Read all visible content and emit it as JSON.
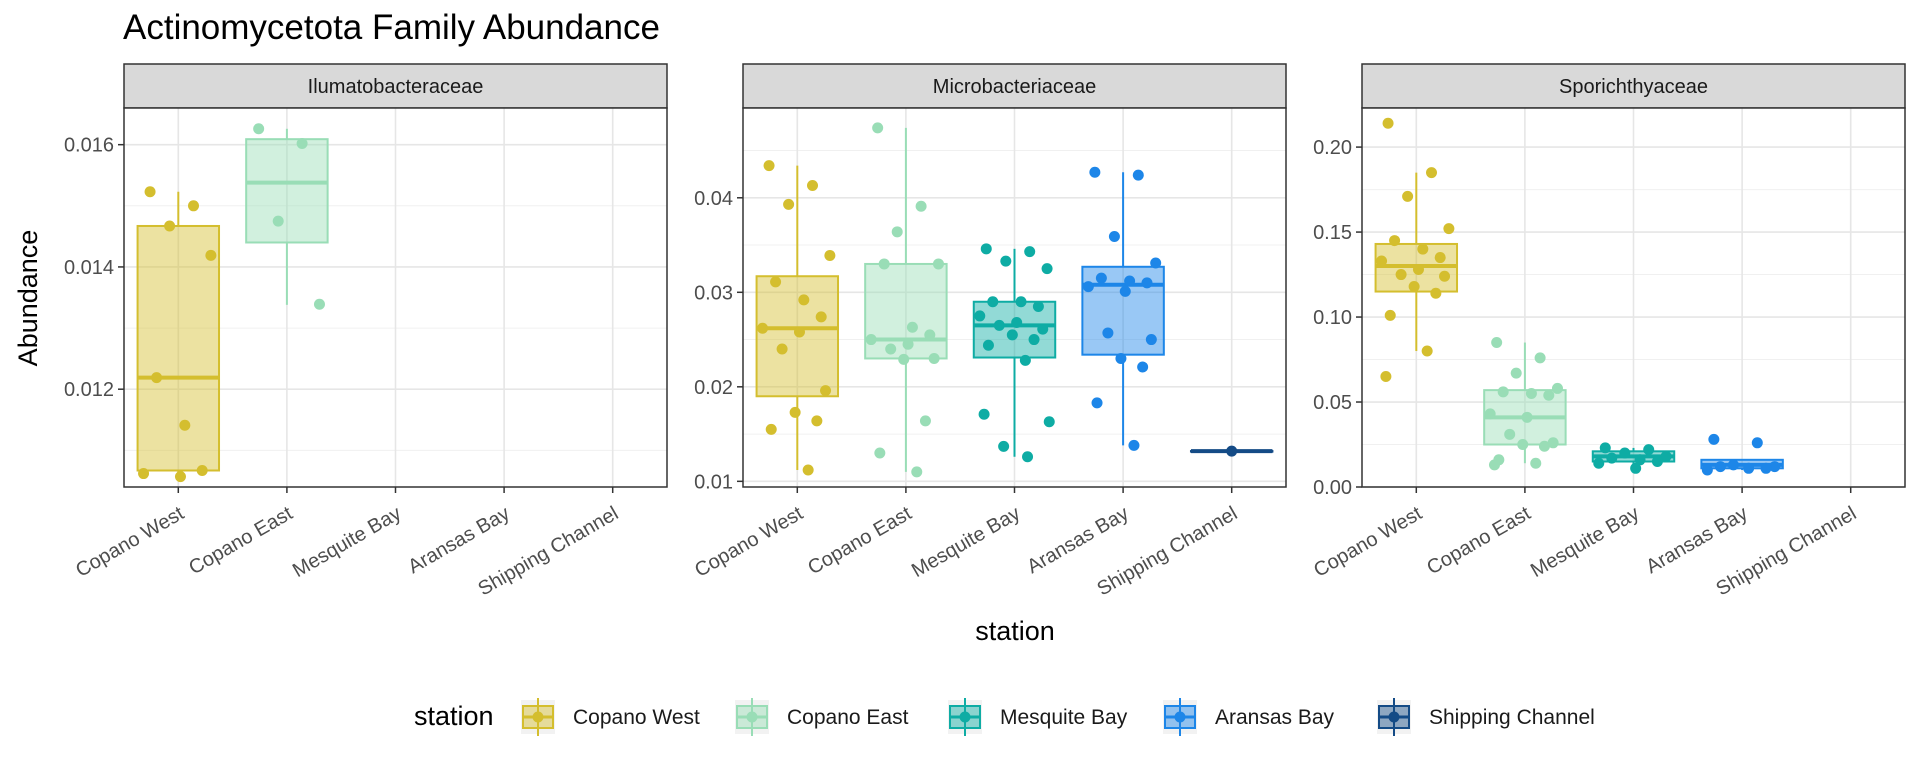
{
  "chart_title": "Actinomycetota Family Abundance",
  "x_label": "station",
  "y_label": "Abundance",
  "legend_title": "station",
  "stations": [
    "Copano West",
    "Copano East",
    "Mesquite Bay",
    "Aransas Bay",
    "Shipping Channel"
  ],
  "colors": {
    "Copano West": "#D4BE2E",
    "Copano East": "#99DDB6",
    "Mesquite Bay": "#0EACA4",
    "Aransas Bay": "#1D86E8",
    "Shipping Channel": "#144B86"
  },
  "chart_data": [
    {
      "type": "box",
      "facet": "Ilumatobacteraceae",
      "ylim": [
        0.0104,
        0.0166
      ],
      "yticks": [
        0.012,
        0.014,
        0.016
      ],
      "ytick_labels": [
        "0.012",
        "0.014",
        "0.016"
      ],
      "boxes": [
        {
          "station": "Copano West",
          "lower": 0.01062,
          "q1": 0.01067,
          "median": 0.01219,
          "q3": 0.01467,
          "upper": 0.01523
        },
        {
          "station": "Copano East",
          "lower": 0.01338,
          "q1": 0.0144,
          "median": 0.01538,
          "q3": 0.01609,
          "upper": 0.01626
        }
      ],
      "points": [
        {
          "station": "Copano West",
          "y": [
            0.01523,
            0.015,
            0.01467,
            0.01419,
            0.01219,
            0.01141,
            0.01067,
            0.01062,
            0.01057
          ]
        },
        {
          "station": "Copano East",
          "y": [
            0.01626,
            0.01602,
            0.01475,
            0.01339
          ]
        }
      ]
    },
    {
      "type": "box",
      "facet": "Microbacteriaceae",
      "ylim": [
        0.0094,
        0.0495
      ],
      "yticks": [
        0.01,
        0.02,
        0.03,
        0.04
      ],
      "ytick_labels": [
        "0.01",
        "0.02",
        "0.03",
        "0.04"
      ],
      "boxes": [
        {
          "station": "Copano West",
          "lower": 0.0112,
          "q1": 0.019,
          "median": 0.0262,
          "q3": 0.0317,
          "upper": 0.0434
        },
        {
          "station": "Copano East",
          "lower": 0.011,
          "q1": 0.023,
          "median": 0.025,
          "q3": 0.033,
          "upper": 0.0474
        },
        {
          "station": "Mesquite Bay",
          "lower": 0.0126,
          "q1": 0.0231,
          "median": 0.0265,
          "q3": 0.029,
          "upper": 0.0346
        },
        {
          "station": "Aransas Bay",
          "lower": 0.0138,
          "q1": 0.0234,
          "median": 0.0308,
          "q3": 0.0327,
          "upper": 0.0427
        },
        {
          "station": "Shipping Channel",
          "lower": 0.0132,
          "q1": 0.0132,
          "median": 0.0132,
          "q3": 0.0132,
          "upper": 0.0132
        }
      ],
      "points": [
        {
          "station": "Copano West",
          "y": [
            0.0434,
            0.0413,
            0.0393,
            0.0339,
            0.0311,
            0.0292,
            0.0274,
            0.0262,
            0.0258,
            0.024,
            0.0196,
            0.0173,
            0.0164,
            0.0155,
            0.0112
          ]
        },
        {
          "station": "Copano East",
          "y": [
            0.0474,
            0.0391,
            0.0364,
            0.033,
            0.033,
            0.0263,
            0.0255,
            0.025,
            0.0245,
            0.024,
            0.023,
            0.0229,
            0.0164,
            0.013,
            0.011
          ]
        },
        {
          "station": "Mesquite Bay",
          "y": [
            0.0346,
            0.0343,
            0.0333,
            0.0325,
            0.029,
            0.029,
            0.0285,
            0.0275,
            0.0268,
            0.0265,
            0.0261,
            0.0255,
            0.025,
            0.0244,
            0.0228,
            0.0171,
            0.0163,
            0.0137,
            0.0126
          ]
        },
        {
          "station": "Aransas Bay",
          "y": [
            0.0427,
            0.0424,
            0.0359,
            0.0331,
            0.0315,
            0.0312,
            0.031,
            0.0306,
            0.0301,
            0.0257,
            0.025,
            0.023,
            0.0221,
            0.0183,
            0.0138
          ]
        },
        {
          "station": "Shipping Channel",
          "y": [
            0.0132
          ]
        }
      ]
    },
    {
      "type": "box",
      "facet": "Sporichthyaceae",
      "ylim": [
        0.0,
        0.223
      ],
      "yticks": [
        0.0,
        0.05,
        0.1,
        0.15,
        0.2
      ],
      "ytick_labels": [
        "0.00",
        "0.05",
        "0.10",
        "0.15",
        "0.20"
      ],
      "boxes": [
        {
          "station": "Copano West",
          "lower": 0.08,
          "q1": 0.115,
          "median": 0.13,
          "q3": 0.143,
          "upper": 0.185
        },
        {
          "station": "Copano East",
          "lower": 0.014,
          "q1": 0.025,
          "median": 0.041,
          "q3": 0.057,
          "upper": 0.085
        },
        {
          "station": "Mesquite Bay",
          "lower": 0.011,
          "q1": 0.015,
          "median": 0.018,
          "q3": 0.021,
          "upper": 0.023
        },
        {
          "station": "Aransas Bay",
          "lower": 0.01,
          "q1": 0.011,
          "median": 0.013,
          "q3": 0.016,
          "upper": 0.016
        }
      ],
      "points": [
        {
          "station": "Copano West",
          "y": [
            0.214,
            0.185,
            0.171,
            0.152,
            0.145,
            0.14,
            0.135,
            0.133,
            0.128,
            0.125,
            0.124,
            0.118,
            0.114,
            0.101,
            0.08,
            0.065
          ]
        },
        {
          "station": "Copano East",
          "y": [
            0.085,
            0.076,
            0.067,
            0.058,
            0.056,
            0.055,
            0.054,
            0.043,
            0.041,
            0.031,
            0.026,
            0.025,
            0.024,
            0.016,
            0.014,
            0.013
          ]
        },
        {
          "station": "Mesquite Bay",
          "y": [
            0.023,
            0.022,
            0.02,
            0.018,
            0.017,
            0.016,
            0.015,
            0.014,
            0.011
          ]
        },
        {
          "station": "Aransas Bay",
          "y": [
            0.028,
            0.026,
            0.013,
            0.012,
            0.012,
            0.011,
            0.011,
            0.01
          ]
        }
      ]
    }
  ]
}
